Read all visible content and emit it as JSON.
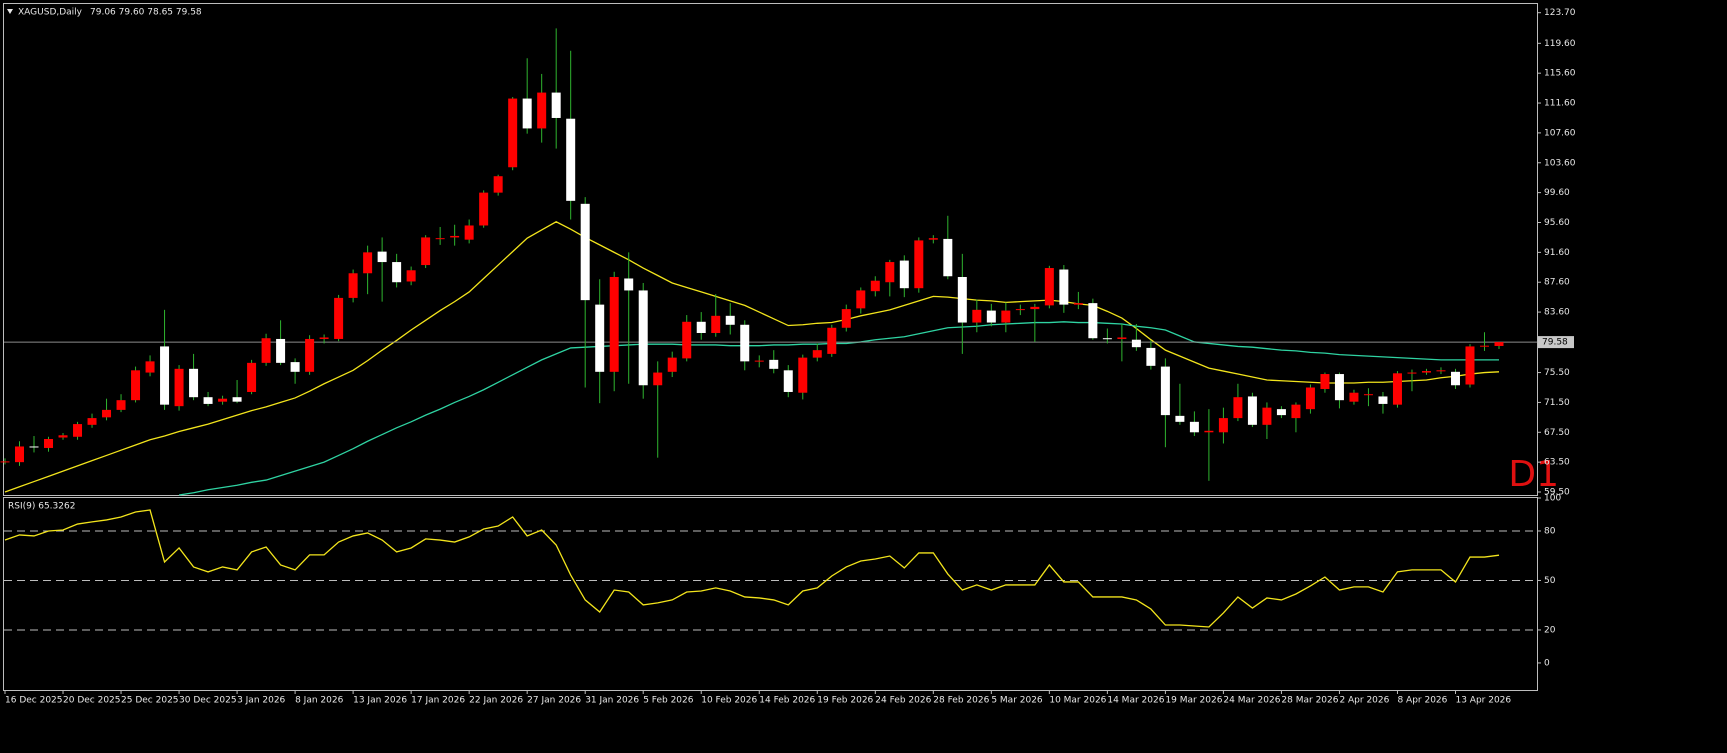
{
  "chart_data": [
    {
      "type": "candlestick",
      "title": "XAGUSD,Daily",
      "ohlc_label": "79.06 79.60 78.65 79.58",
      "annotation": "D1",
      "categories": [
        "16 Dec 2025",
        null,
        null,
        null,
        "20 Dec 2025",
        null,
        null,
        null,
        "25 Dec 2025",
        null,
        null,
        null,
        "30 Dec 2025",
        null,
        null,
        null,
        "3 Jan 2026",
        null,
        null,
        null,
        "8 Jan 2026",
        null,
        null,
        null,
        "13 Jan 2026",
        null,
        null,
        null,
        "17 Jan 2026",
        null,
        null,
        null,
        "22 Jan 2026",
        null,
        null,
        null,
        "27 Jan 2026",
        null,
        null,
        null,
        "31 Jan 2026",
        null,
        null,
        null,
        "5 Feb 2026",
        null,
        null,
        null,
        "10 Feb 2026",
        null,
        null,
        null,
        "14 Feb 2026",
        null,
        null,
        null,
        "19 Feb 2026",
        null,
        null,
        null,
        "24 Feb 2026",
        null,
        null,
        null,
        "28 Feb 2026",
        null,
        null,
        null,
        "5 Mar 2026",
        null,
        null,
        null,
        "10 Mar 2026",
        null,
        null,
        null,
        "14 Mar 2026",
        null,
        null,
        null,
        "19 Mar 2026",
        null,
        null,
        null,
        "24 Mar 2026",
        null,
        null,
        null,
        "28 Mar 2026",
        null,
        null,
        null,
        "2 Apr 2026",
        null,
        null,
        null,
        "8 Apr 2026",
        null,
        null,
        null,
        "13 Apr 2026",
        null,
        null,
        null
      ],
      "open": [
        63.5,
        63.5,
        65.6,
        65.4,
        66.8,
        66.9,
        68.5,
        69.5,
        70.5,
        71.8,
        75.5,
        79.0,
        71.0,
        76.0,
        72.2,
        71.6,
        72.2,
        72.9,
        76.8,
        80.0,
        76.9,
        75.6,
        80.0,
        80.0,
        85.5,
        88.8,
        91.7,
        90.3,
        87.7,
        89.9,
        93.4,
        93.6,
        93.3,
        95.2,
        99.6,
        103.0,
        112.2,
        108.2,
        113.0,
        109.5,
        98.1,
        84.6,
        75.6,
        88.1,
        86.5,
        73.8,
        75.6,
        77.4,
        82.3,
        80.8,
        83.1,
        81.9,
        77.0,
        77.2,
        75.8,
        72.8,
        77.5,
        78.0,
        81.5,
        84.1,
        86.4,
        87.6,
        90.5,
        86.8,
        93.3,
        93.4,
        88.3,
        82.2,
        83.8,
        82.2,
        83.9,
        84.0,
        84.5,
        89.3,
        84.6,
        84.8,
        80.1,
        80.0,
        79.9,
        78.8,
        76.3,
        69.7,
        68.9,
        67.5,
        67.5,
        69.4,
        72.3,
        68.5,
        70.6,
        69.4,
        70.6,
        73.3,
        75.3,
        71.6,
        72.5,
        72.3,
        71.2,
        75.4,
        75.5,
        75.7,
        75.6,
        73.9,
        79.0,
        79.06
      ],
      "high": [
        64.0,
        66.3,
        67.0,
        66.9,
        67.4,
        68.9,
        70.0,
        72.0,
        72.6,
        76.3,
        77.8,
        83.9,
        76.5,
        78.0,
        72.9,
        72.4,
        74.5,
        77.2,
        80.7,
        82.5,
        77.4,
        80.5,
        80.6,
        85.9,
        89.3,
        92.5,
        93.6,
        91.4,
        89.7,
        93.9,
        95.0,
        95.3,
        96.0,
        99.9,
        102.0,
        112.4,
        117.6,
        115.5,
        121.6,
        118.6,
        99.0,
        88.0,
        89.0,
        91.6,
        87.5,
        77.0,
        78.3,
        83.2,
        83.6,
        86.0,
        84.8,
        82.5,
        77.8,
        78.5,
        76.5,
        77.9,
        79.4,
        81.9,
        84.6,
        86.9,
        88.4,
        90.6,
        91.2,
        93.6,
        93.9,
        96.5,
        91.4,
        85.3,
        84.7,
        84.9,
        84.6,
        84.7,
        89.8,
        89.9,
        86.3,
        85.4,
        81.4,
        82.0,
        82.0,
        79.8,
        77.4,
        74.0,
        70.3,
        70.6,
        70.8,
        74.0,
        72.8,
        71.5,
        71.0,
        71.5,
        73.9,
        75.5,
        75.5,
        73.2,
        73.4,
        72.9,
        75.7,
        75.9,
        76.0,
        76.2,
        76.0,
        79.3,
        80.9,
        79.6
      ],
      "low": [
        63.2,
        63.0,
        64.8,
        64.9,
        66.5,
        66.5,
        68.1,
        69.1,
        70.2,
        71.5,
        75.0,
        70.5,
        70.4,
        71.8,
        71.0,
        71.2,
        71.4,
        72.6,
        76.4,
        76.5,
        74.0,
        75.2,
        79.4,
        79.7,
        84.9,
        86.0,
        85.0,
        86.9,
        87.2,
        89.5,
        92.6,
        92.5,
        92.8,
        94.9,
        99.2,
        102.6,
        107.5,
        106.3,
        105.5,
        96.0,
        73.5,
        71.4,
        73.0,
        74.0,
        72.0,
        64.1,
        74.9,
        77.0,
        79.9,
        80.3,
        80.6,
        75.8,
        76.2,
        75.4,
        72.2,
        71.9,
        77.0,
        77.6,
        81.0,
        83.4,
        85.7,
        85.7,
        85.6,
        86.2,
        92.8,
        88.0,
        78.0,
        80.9,
        81.7,
        80.9,
        83.2,
        79.6,
        84.1,
        83.5,
        84.0,
        79.9,
        79.4,
        77.0,
        78.4,
        75.9,
        65.5,
        68.5,
        67.0,
        61.0,
        66.0,
        69.0,
        68.2,
        66.6,
        69.4,
        67.5,
        70.0,
        72.8,
        70.7,
        71.2,
        71.0,
        70.0,
        70.8,
        73.0,
        75.2,
        75.3,
        73.3,
        73.5,
        78.4,
        78.65
      ],
      "close": [
        63.6,
        65.6,
        65.5,
        66.6,
        67.1,
        68.6,
        69.4,
        70.5,
        71.8,
        75.8,
        77.0,
        71.2,
        76.0,
        72.2,
        71.3,
        72.0,
        71.6,
        76.8,
        80.1,
        76.8,
        75.6,
        80.0,
        80.2,
        85.5,
        88.8,
        91.6,
        90.3,
        87.6,
        89.2,
        93.6,
        93.5,
        93.8,
        95.2,
        99.6,
        101.8,
        112.2,
        108.2,
        113.0,
        109.6,
        98.5,
        85.2,
        75.6,
        88.3,
        86.5,
        73.8,
        75.5,
        77.5,
        82.3,
        80.8,
        83.1,
        81.9,
        77.0,
        77.1,
        76.0,
        72.9,
        77.5,
        78.5,
        81.5,
        84.0,
        86.5,
        87.8,
        90.3,
        86.8,
        93.2,
        93.5,
        88.4,
        82.2,
        83.9,
        82.2,
        83.8,
        84.0,
        84.3,
        89.5,
        84.6,
        84.8,
        80.1,
        80.0,
        80.2,
        78.9,
        76.4,
        69.8,
        68.9,
        67.5,
        67.7,
        69.4,
        72.2,
        68.5,
        70.8,
        69.8,
        71.2,
        73.5,
        75.3,
        71.8,
        72.8,
        72.6,
        71.3,
        75.4,
        75.5,
        75.7,
        75.8,
        73.8,
        79.0,
        79.1,
        79.58
      ],
      "up_color": "#ff0000",
      "down_color": "#ffffff",
      "wick_color": "#2fb52f",
      "series": [
        {
          "color": "#f2e41c",
          "values": [
            59.5,
            60.2,
            60.9,
            61.6,
            62.3,
            63.0,
            63.7,
            64.4,
            65.1,
            65.8,
            66.5,
            67.0,
            67.6,
            68.1,
            68.6,
            69.2,
            69.8,
            70.4,
            70.9,
            71.5,
            72.1,
            73.0,
            74.0,
            74.9,
            75.8,
            77.1,
            78.5,
            79.8,
            81.2,
            82.5,
            83.8,
            85.0,
            86.3,
            88.1,
            89.9,
            91.7,
            93.5,
            94.6,
            95.7,
            94.7,
            93.6,
            92.6,
            91.6,
            90.6,
            89.5,
            88.5,
            87.5,
            86.9,
            86.3,
            85.7,
            85.1,
            84.5,
            83.6,
            82.7,
            81.8,
            81.9,
            82.1,
            82.2,
            82.6,
            83.1,
            83.5,
            83.9,
            84.5,
            85.1,
            85.7,
            85.6,
            85.4,
            85.2,
            85.1,
            84.9,
            85.0,
            85.1,
            85.2,
            85.0,
            84.7,
            84.5,
            83.7,
            82.8,
            81.4,
            79.9,
            78.5,
            77.7,
            76.9,
            76.1,
            75.7,
            75.3,
            74.9,
            74.5,
            74.4,
            74.3,
            74.2,
            74.1,
            74.1,
            74.1,
            74.2,
            74.2,
            74.3,
            74.4,
            74.5,
            74.8,
            75.0,
            75.3,
            75.5,
            75.6
          ]
        },
        {
          "color": "#2fd3a2",
          "values": [
            null,
            null,
            null,
            null,
            null,
            null,
            null,
            null,
            null,
            null,
            null,
            null,
            59.1,
            59.4,
            59.8,
            60.1,
            60.4,
            60.8,
            61.1,
            61.7,
            62.3,
            62.9,
            63.5,
            64.4,
            65.3,
            66.3,
            67.2,
            68.1,
            68.9,
            69.8,
            70.6,
            71.5,
            72.3,
            73.2,
            74.2,
            75.2,
            76.2,
            77.2,
            78.0,
            78.8,
            78.9,
            79.0,
            79.1,
            79.2,
            79.3,
            79.3,
            79.3,
            79.2,
            79.2,
            79.2,
            79.1,
            79.1,
            79.1,
            79.2,
            79.2,
            79.3,
            79.3,
            79.4,
            79.4,
            79.6,
            79.9,
            80.1,
            80.3,
            80.7,
            81.1,
            81.5,
            81.6,
            81.7,
            81.9,
            82.0,
            82.1,
            82.2,
            82.2,
            82.3,
            82.2,
            82.2,
            82.1,
            82.0,
            81.7,
            81.5,
            81.2,
            80.4,
            79.6,
            79.4,
            79.2,
            79.0,
            78.9,
            78.7,
            78.5,
            78.4,
            78.2,
            78.1,
            77.9,
            77.8,
            77.7,
            77.6,
            77.5,
            77.4,
            77.3,
            77.2,
            77.2,
            77.2,
            77.2,
            77.2
          ]
        }
      ],
      "last_price": 79.58,
      "ylim": [
        59.1,
        125.0
      ],
      "yticks": [
        {
          "value": 123.7,
          "label": "123.70"
        },
        {
          "value": 119.6,
          "label": "119.60"
        },
        {
          "value": 115.6,
          "label": "115.60"
        },
        {
          "value": 111.6,
          "label": "111.60"
        },
        {
          "value": 107.6,
          "label": "107.60"
        },
        {
          "value": 103.6,
          "label": "103.60"
        },
        {
          "value": 99.6,
          "label": "99.60"
        },
        {
          "value": 95.6,
          "label": "95.60"
        },
        {
          "value": 91.6,
          "label": "91.60"
        },
        {
          "value": 87.6,
          "label": "87.60"
        },
        {
          "value": 83.6,
          "label": "83.60"
        },
        {
          "value": 75.5,
          "label": "75.50"
        },
        {
          "value": 71.5,
          "label": "71.50"
        },
        {
          "value": 67.5,
          "label": "67.50"
        },
        {
          "value": 63.5,
          "label": "63.50"
        },
        {
          "value": 59.5,
          "label": "59.50"
        }
      ]
    },
    {
      "type": "line",
      "title": "RSI(9) 65.3262",
      "color": "#f2e41c",
      "values": [
        74.5,
        77.6,
        77,
        80,
        80.6,
        84.2,
        85.5,
        86.7,
        88.5,
        91.5,
        92.7,
        61.2,
        69.7,
        58.2,
        55.2,
        58.2,
        56.4,
        67.3,
        70.3,
        59.4,
        56.4,
        65.5,
        65.5,
        73.3,
        77,
        78.8,
        74.5,
        67.3,
        69.7,
        75.2,
        74.5,
        73.3,
        76.4,
        81.2,
        83,
        88.5,
        77,
        80.6,
        71.5,
        53.3,
        38.2,
        30.9,
        44.2,
        43,
        35.2,
        36.4,
        38.2,
        43,
        43.6,
        45.5,
        43.6,
        40,
        39.4,
        38.2,
        35.2,
        43.6,
        45.5,
        52.7,
        58.2,
        61.8,
        63,
        64.8,
        57.6,
        66.7,
        66.7,
        53.9,
        44.2,
        47.3,
        44.2,
        47.3,
        47.3,
        47.3,
        59.4,
        49.1,
        49.1,
        40,
        40,
        40,
        38.2,
        32.7,
        23,
        23,
        22.4,
        21.8,
        30.3,
        40,
        33.3,
        39.4,
        38.2,
        41.8,
        46.7,
        52.1,
        44.2,
        46.1,
        46.1,
        43,
        55.2,
        56.4,
        56.4,
        56.4,
        49.1,
        64.2,
        64.2,
        65.3262
      ],
      "levels": [
        80,
        50,
        20
      ],
      "ylim": [
        -16.4,
        100.6
      ],
      "yticks": [
        100,
        80,
        50,
        20,
        0
      ]
    }
  ]
}
